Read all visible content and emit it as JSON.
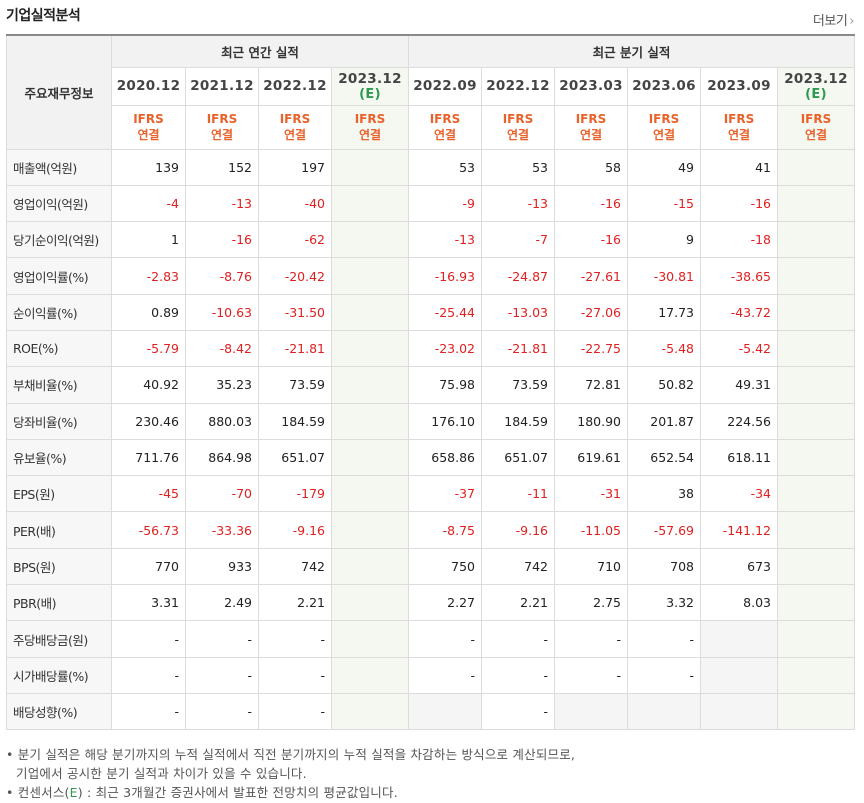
{
  "header": {
    "title": "기업실적분석",
    "more_label": "더보기",
    "more_arrow": "›"
  },
  "table": {
    "row_header_label": "주요재무정보",
    "group_annual": "최근 연간 실적",
    "group_quarter": "최근 분기 실적",
    "periods": [
      {
        "label": "2020.12",
        "est": "",
        "ifrs": "IFRS",
        "basis": "연결",
        "estimate": false
      },
      {
        "label": "2021.12",
        "est": "",
        "ifrs": "IFRS",
        "basis": "연결",
        "estimate": false
      },
      {
        "label": "2022.12",
        "est": "",
        "ifrs": "IFRS",
        "basis": "연결",
        "estimate": false
      },
      {
        "label": "2023.12",
        "est": "(E)",
        "ifrs": "IFRS",
        "basis": "연결",
        "estimate": true
      },
      {
        "label": "2022.09",
        "est": "",
        "ifrs": "IFRS",
        "basis": "연결",
        "estimate": false
      },
      {
        "label": "2022.12",
        "est": "",
        "ifrs": "IFRS",
        "basis": "연결",
        "estimate": false
      },
      {
        "label": "2023.03",
        "est": "",
        "ifrs": "IFRS",
        "basis": "연결",
        "estimate": false
      },
      {
        "label": "2023.06",
        "est": "",
        "ifrs": "IFRS",
        "basis": "연결",
        "estimate": false
      },
      {
        "label": "2023.09",
        "est": "",
        "ifrs": "IFRS",
        "basis": "연결",
        "estimate": false
      },
      {
        "label": "2023.12",
        "est": "(E)",
        "ifrs": "IFRS",
        "basis": "연결",
        "estimate": true
      }
    ],
    "rows": [
      {
        "label": "매출액(억원)",
        "values": [
          "139",
          "152",
          "197",
          "",
          "53",
          "53",
          "58",
          "49",
          "41",
          ""
        ]
      },
      {
        "label": "영업이익(억원)",
        "values": [
          "-4",
          "-13",
          "-40",
          "",
          "-9",
          "-13",
          "-16",
          "-15",
          "-16",
          ""
        ]
      },
      {
        "label": "당기순이익(억원)",
        "values": [
          "1",
          "-16",
          "-62",
          "",
          "-13",
          "-7",
          "-16",
          "9",
          "-18",
          ""
        ]
      },
      {
        "label": "영업이익률(%)",
        "values": [
          "-2.83",
          "-8.76",
          "-20.42",
          "",
          "-16.93",
          "-24.87",
          "-27.61",
          "-30.81",
          "-38.65",
          ""
        ]
      },
      {
        "label": "순이익률(%)",
        "values": [
          "0.89",
          "-10.63",
          "-31.50",
          "",
          "-25.44",
          "-13.03",
          "-27.06",
          "17.73",
          "-43.72",
          ""
        ]
      },
      {
        "label": "ROE(%)",
        "values": [
          "-5.79",
          "-8.42",
          "-21.81",
          "",
          "-23.02",
          "-21.81",
          "-22.75",
          "-5.48",
          "-5.42",
          ""
        ]
      },
      {
        "label": "부채비율(%)",
        "values": [
          "40.92",
          "35.23",
          "73.59",
          "",
          "75.98",
          "73.59",
          "72.81",
          "50.82",
          "49.31",
          ""
        ]
      },
      {
        "label": "당좌비율(%)",
        "values": [
          "230.46",
          "880.03",
          "184.59",
          "",
          "176.10",
          "184.59",
          "180.90",
          "201.87",
          "224.56",
          ""
        ]
      },
      {
        "label": "유보율(%)",
        "values": [
          "711.76",
          "864.98",
          "651.07",
          "",
          "658.86",
          "651.07",
          "619.61",
          "652.54",
          "618.11",
          ""
        ]
      },
      {
        "label": "EPS(원)",
        "values": [
          "-45",
          "-70",
          "-179",
          "",
          "-37",
          "-11",
          "-31",
          "38",
          "-34",
          ""
        ]
      },
      {
        "label": "PER(배)",
        "values": [
          "-56.73",
          "-33.36",
          "-9.16",
          "",
          "-8.75",
          "-9.16",
          "-11.05",
          "-57.69",
          "-141.12",
          ""
        ]
      },
      {
        "label": "BPS(원)",
        "values": [
          "770",
          "933",
          "742",
          "",
          "750",
          "742",
          "710",
          "708",
          "673",
          ""
        ]
      },
      {
        "label": "PBR(배)",
        "values": [
          "3.31",
          "2.49",
          "2.21",
          "",
          "2.27",
          "2.21",
          "2.75",
          "3.32",
          "8.03",
          ""
        ]
      },
      {
        "label": "주당배당금(원)",
        "values": [
          "-",
          "-",
          "-",
          "",
          "-",
          "-",
          "-",
          "-",
          "",
          ""
        ]
      },
      {
        "label": "시가배당률(%)",
        "values": [
          "-",
          "-",
          "-",
          "",
          "-",
          "-",
          "-",
          "-",
          "",
          ""
        ]
      },
      {
        "label": "배당성향(%)",
        "values": [
          "-",
          "-",
          "-",
          "",
          "",
          "-",
          "",
          "",
          "",
          ""
        ]
      }
    ]
  },
  "notes": {
    "line1": "• 분기 실적은 해당 분기까지의 누적 실적에서 직전 분기까지의 누적 실적을 차감하는 방식으로 계산되므로,",
    "line2": "기업에서 공시한 분기 실적과 차이가 있을 수 있습니다.",
    "line3_prefix": "• 컨센서스(",
    "line3_e": "E",
    "line3_suffix": ") : 최근 3개월간 증권사에서 발표한 전망치의 평균값입니다."
  }
}
